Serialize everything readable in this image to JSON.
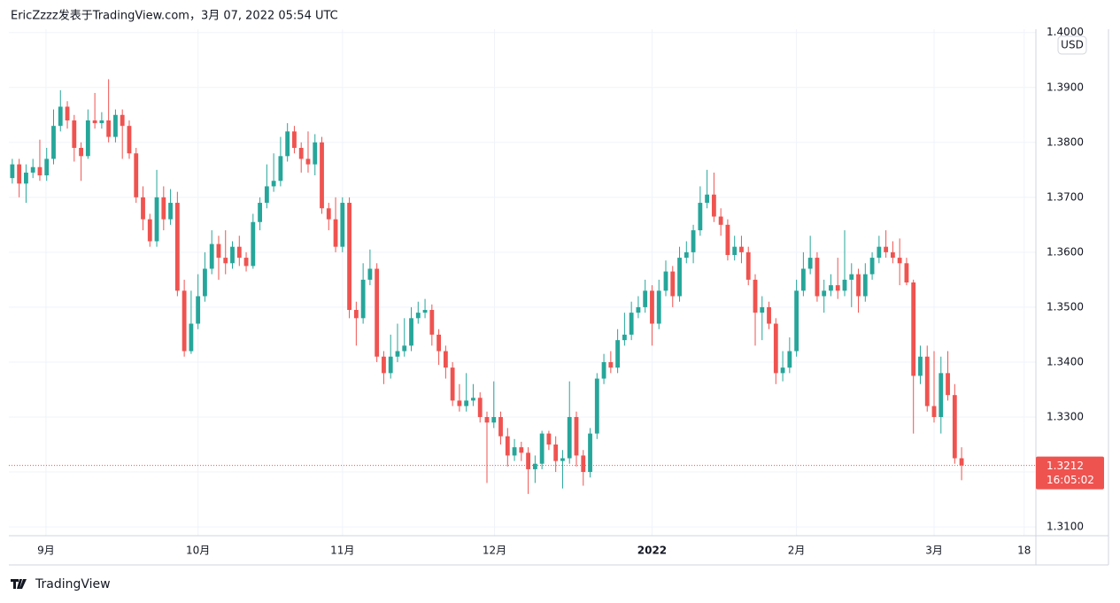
{
  "chart_data": {
    "type": "candlestick",
    "title": "EricZzzz发表于TradingView.com，3月 07, 2022 05:54 UTC",
    "currency": "USD",
    "brand": "TradingView",
    "up_color": "#26a69a",
    "down_color": "#ef5350",
    "grid": true,
    "last_price": 1.3212,
    "countdown": "16:05:02",
    "xlim": [
      -0.5,
      148.8
    ],
    "xticks": [
      {
        "value": 4.9,
        "label": "9月"
      },
      {
        "value": 27.0,
        "label": "10月"
      },
      {
        "value": 48.0,
        "label": "11月"
      },
      {
        "value": 70.1,
        "label": "12月"
      },
      {
        "value": 93.0,
        "label": "2022"
      },
      {
        "value": 114.0,
        "label": "2月"
      },
      {
        "value": 134.0,
        "label": "3月"
      },
      {
        "value": 147.1,
        "label": "18"
      }
    ],
    "ylim": [
      1.3084,
      1.4006
    ],
    "yticks": [
      {
        "value": 1.31,
        "label": "1.3100"
      },
      {
        "value": 1.32,
        "label": "1.3200"
      },
      {
        "value": 1.33,
        "label": "1.3300"
      },
      {
        "value": 1.34,
        "label": "1.3400"
      },
      {
        "value": 1.35,
        "label": "1.3500"
      },
      {
        "value": 1.36,
        "label": "1.3600"
      },
      {
        "value": 1.37,
        "label": "1.3700"
      },
      {
        "value": 1.38,
        "label": "1.3800"
      },
      {
        "value": 1.39,
        "label": "1.3900"
      },
      {
        "value": 1.4,
        "label": "1.4000"
      }
    ],
    "open": [
      1.3735,
      1.376,
      1.3725,
      1.3745,
      1.3755,
      1.374,
      1.377,
      1.383,
      1.3865,
      1.384,
      1.379,
      1.3775,
      1.384,
      1.3835,
      1.384,
      1.381,
      1.385,
      1.383,
      1.378,
      1.37,
      1.366,
      1.362,
      1.37,
      1.366,
      1.369,
      1.353,
      1.342,
      1.347,
      1.352,
      1.357,
      1.3615,
      1.359,
      1.358,
      1.361,
      1.359,
      1.3575,
      1.3655,
      1.369,
      1.372,
      1.373,
      1.3775,
      1.382,
      1.379,
      1.377,
      1.376,
      1.38,
      1.368,
      1.366,
      1.361,
      1.369,
      1.3495,
      1.348,
      1.355,
      1.357,
      1.341,
      1.338,
      1.341,
      1.342,
      1.343,
      1.348,
      1.349,
      1.3495,
      1.345,
      1.342,
      1.339,
      1.333,
      1.332,
      1.333,
      1.3335,
      1.33,
      1.329,
      1.33,
      1.3265,
      1.323,
      1.3245,
      1.3235,
      1.3205,
      1.3215,
      1.327,
      1.325,
      1.322,
      1.3225,
      1.33,
      1.323,
      1.32,
      1.327,
      1.337,
      1.34,
      1.339,
      1.344,
      1.345,
      1.349,
      1.35,
      1.353,
      1.347,
      1.353,
      1.3565,
      1.352,
      1.359,
      1.36,
      1.364,
      1.369,
      1.3705,
      1.3665,
      1.365,
      1.3595,
      1.361,
      1.36,
      1.355,
      1.349,
      1.35,
      1.347,
      1.338,
      1.339,
      1.342,
      1.353,
      1.357,
      1.359,
      1.352,
      1.353,
      1.354,
      1.353,
      1.355,
      1.356,
      1.352,
      1.356,
      1.359,
      1.361,
      1.36,
      1.359,
      1.358,
      1.3545,
      1.3375,
      1.341,
      1.332,
      1.33,
      1.338,
      1.334,
      1.3225
    ],
    "high": [
      1.377,
      1.377,
      1.376,
      1.377,
      1.3805,
      1.379,
      1.386,
      1.3895,
      1.3875,
      1.385,
      1.38,
      1.386,
      1.389,
      1.3855,
      1.3915,
      1.386,
      1.386,
      1.384,
      1.379,
      1.372,
      1.367,
      1.375,
      1.372,
      1.3715,
      1.371,
      1.355,
      1.353,
      1.356,
      1.36,
      1.364,
      1.363,
      1.364,
      1.362,
      1.363,
      1.36,
      1.367,
      1.37,
      1.376,
      1.378,
      1.381,
      1.3835,
      1.383,
      1.38,
      1.382,
      1.3815,
      1.381,
      1.369,
      1.37,
      1.37,
      1.37,
      1.351,
      1.358,
      1.3605,
      1.358,
      1.342,
      1.345,
      1.347,
      1.348,
      1.35,
      1.351,
      1.3515,
      1.3505,
      1.346,
      1.343,
      1.34,
      1.336,
      1.338,
      1.336,
      1.3345,
      1.331,
      1.3365,
      1.331,
      1.328,
      1.326,
      1.3255,
      1.3245,
      1.323,
      1.3275,
      1.3275,
      1.3265,
      1.324,
      1.3365,
      1.331,
      1.324,
      1.328,
      1.338,
      1.3415,
      1.342,
      1.346,
      1.349,
      1.351,
      1.352,
      1.355,
      1.354,
      1.355,
      1.3585,
      1.3575,
      1.361,
      1.362,
      1.365,
      1.372,
      1.375,
      1.3745,
      1.368,
      1.366,
      1.363,
      1.363,
      1.361,
      1.356,
      1.352,
      1.351,
      1.348,
      1.342,
      1.3445,
      1.355,
      1.36,
      1.363,
      1.36,
      1.355,
      1.356,
      1.359,
      1.364,
      1.358,
      1.357,
      1.358,
      1.36,
      1.363,
      1.364,
      1.362,
      1.3625,
      1.359,
      1.355,
      1.343,
      1.343,
      1.342,
      1.341,
      1.342,
      1.336,
      1.3245
    ],
    "low": [
      1.3725,
      1.37,
      1.369,
      1.3735,
      1.373,
      1.373,
      1.376,
      1.382,
      1.3825,
      1.3765,
      1.373,
      1.377,
      1.3825,
      1.3825,
      1.38,
      1.38,
      1.377,
      1.377,
      1.369,
      1.364,
      1.361,
      1.361,
      1.364,
      1.365,
      1.352,
      1.341,
      1.3415,
      1.346,
      1.351,
      1.356,
      1.355,
      1.356,
      1.357,
      1.3575,
      1.3565,
      1.357,
      1.364,
      1.368,
      1.371,
      1.372,
      1.3765,
      1.378,
      1.3745,
      1.3745,
      1.374,
      1.367,
      1.364,
      1.36,
      1.36,
      1.348,
      1.343,
      1.347,
      1.354,
      1.34,
      1.336,
      1.337,
      1.34,
      1.341,
      1.342,
      1.347,
      1.348,
      1.343,
      1.3395,
      1.337,
      1.332,
      1.331,
      1.331,
      1.332,
      1.329,
      1.318,
      1.328,
      1.325,
      1.321,
      1.322,
      1.322,
      1.316,
      1.318,
      1.3205,
      1.324,
      1.32,
      1.317,
      1.3215,
      1.321,
      1.3175,
      1.319,
      1.326,
      1.336,
      1.338,
      1.338,
      1.343,
      1.344,
      1.348,
      1.349,
      1.343,
      1.346,
      1.352,
      1.35,
      1.351,
      1.358,
      1.358,
      1.363,
      1.368,
      1.3655,
      1.363,
      1.3585,
      1.3585,
      1.358,
      1.354,
      1.343,
      1.344,
      1.346,
      1.336,
      1.3365,
      1.338,
      1.341,
      1.352,
      1.356,
      1.351,
      1.349,
      1.352,
      1.3515,
      1.352,
      1.35,
      1.349,
      1.351,
      1.355,
      1.358,
      1.359,
      1.358,
      1.354,
      1.354,
      1.327,
      1.336,
      1.331,
      1.329,
      1.327,
      1.333,
      1.3215,
      1.3185
    ],
    "close": [
      1.376,
      1.3725,
      1.3745,
      1.3755,
      1.374,
      1.377,
      1.383,
      1.3865,
      1.384,
      1.379,
      1.3775,
      1.384,
      1.3835,
      1.384,
      1.381,
      1.385,
      1.383,
      1.378,
      1.37,
      1.366,
      1.362,
      1.37,
      1.366,
      1.369,
      1.353,
      1.342,
      1.347,
      1.352,
      1.357,
      1.3615,
      1.359,
      1.358,
      1.361,
      1.359,
      1.3575,
      1.3655,
      1.369,
      1.372,
      1.373,
      1.3775,
      1.382,
      1.379,
      1.377,
      1.376,
      1.38,
      1.368,
      1.366,
      1.361,
      1.369,
      1.3495,
      1.348,
      1.355,
      1.357,
      1.341,
      1.338,
      1.341,
      1.342,
      1.343,
      1.348,
      1.349,
      1.3495,
      1.345,
      1.342,
      1.339,
      1.333,
      1.332,
      1.333,
      1.3335,
      1.33,
      1.329,
      1.33,
      1.3265,
      1.323,
      1.3245,
      1.3235,
      1.3205,
      1.3215,
      1.327,
      1.325,
      1.322,
      1.3225,
      1.33,
      1.323,
      1.32,
      1.327,
      1.337,
      1.34,
      1.339,
      1.344,
      1.345,
      1.349,
      1.35,
      1.353,
      1.347,
      1.353,
      1.3565,
      1.352,
      1.359,
      1.36,
      1.364,
      1.369,
      1.3705,
      1.3665,
      1.365,
      1.3595,
      1.361,
      1.36,
      1.355,
      1.349,
      1.35,
      1.347,
      1.338,
      1.339,
      1.342,
      1.353,
      1.357,
      1.359,
      1.352,
      1.353,
      1.354,
      1.353,
      1.355,
      1.356,
      1.352,
      1.356,
      1.359,
      1.361,
      1.36,
      1.359,
      1.358,
      1.3545,
      1.3375,
      1.341,
      1.332,
      1.33,
      1.338,
      1.334,
      1.3225,
      1.3212
    ]
  }
}
